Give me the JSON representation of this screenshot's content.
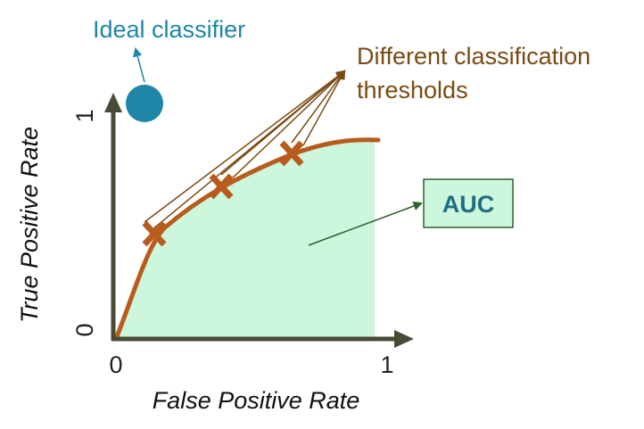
{
  "ideal_classifier": {
    "label": "Ideal classifier",
    "color": "#1e87a8"
  },
  "thresholds": {
    "line1": "Different classification",
    "line2": "thresholds",
    "color": "#7a4a12",
    "marker_color": "#b85c1e",
    "points": [
      {
        "fpr": 0.15,
        "tpr": 0.5
      },
      {
        "fpr": 0.4,
        "tpr": 0.72
      },
      {
        "fpr": 0.68,
        "tpr": 0.87
      }
    ]
  },
  "auc": {
    "label": "AUC",
    "text_color": "#1f6e82",
    "fill_color": "#ccf7dc",
    "box_fill": "#ccf7dc",
    "box_border": "#2f5f2f"
  },
  "curve": {
    "color": "#b85c1e",
    "area_color": "#ccf7dc"
  },
  "axes": {
    "color": "#4a4a36",
    "x_title": "False Positive Rate",
    "y_title": "True Positive Rate",
    "x_ticks": [
      "0",
      "1"
    ],
    "y_ticks": [
      "0",
      "1"
    ]
  }
}
